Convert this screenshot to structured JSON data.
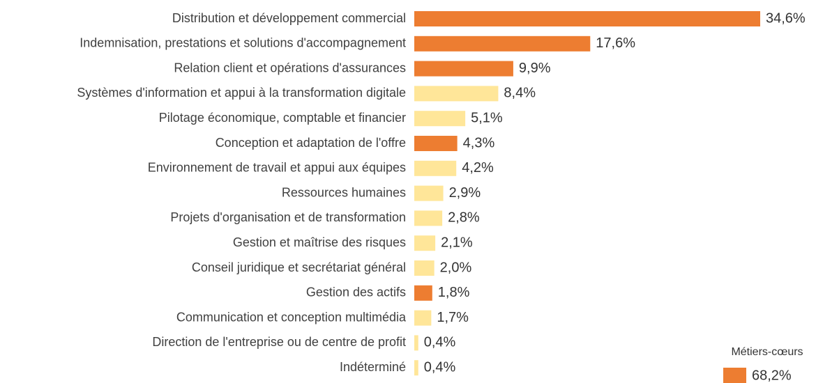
{
  "chart_data": {
    "type": "bar",
    "orientation": "horizontal",
    "categories": [
      "Distribution et développement commercial",
      "Indemnisation, prestations et solutions d'accompagnement",
      "Relation client et opérations d'assurances",
      "Systèmes d'information et appui à la transformation digitale",
      "Pilotage économique, comptable et financier",
      "Conception et adaptation de l'offre",
      "Environnement de travail et appui aux équipes",
      "Ressources humaines",
      "Projets d'organisation et de transformation",
      "Gestion et maîtrise des risques",
      "Conseil juridique et secrétariat général",
      "Gestion des actifs",
      "Communication et conception multimédia",
      "Direction de l'entreprise ou de centre de profit",
      "Indéterminé"
    ],
    "values": [
      34.6,
      17.6,
      9.9,
      8.4,
      5.1,
      4.3,
      4.2,
      2.9,
      2.8,
      2.1,
      2.0,
      1.8,
      1.7,
      0.4,
      0.4
    ],
    "value_labels": [
      "34,6%",
      "17,6%",
      "9,9%",
      "8,4%",
      "5,1%",
      "4,3%",
      "4,2%",
      "2,9%",
      "2,8%",
      "2,1%",
      "2,0%",
      "1,8%",
      "1,7%",
      "0,4%",
      "0,4%"
    ],
    "colors": [
      "#ED7D31",
      "#ED7D31",
      "#ED7D31",
      "#FFE699",
      "#FFE699",
      "#ED7D31",
      "#FFE699",
      "#FFE699",
      "#FFE699",
      "#FFE699",
      "#FFE699",
      "#ED7D31",
      "#FFE699",
      "#FFE699",
      "#FFE699"
    ],
    "legend": {
      "title": "Métiers-cœurs",
      "color": "#ED7D31",
      "value": 68.2,
      "value_label": "68,2%"
    }
  }
}
